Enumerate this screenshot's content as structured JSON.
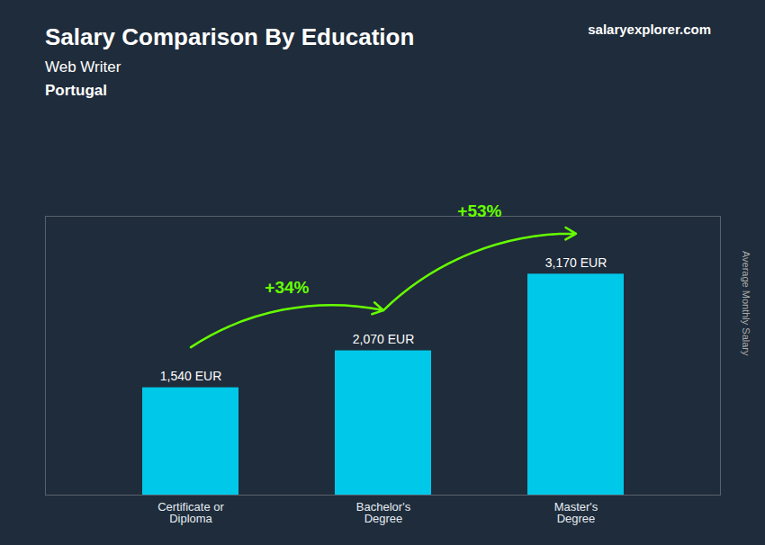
{
  "chart_data": {
    "type": "bar",
    "title": "Salary Comparison By Education",
    "subtitle": [
      "Web Writer",
      "Portugal"
    ],
    "categories": [
      "Certificate or\nDiploma",
      "Bachelor's\nDegree",
      "Master's\nDegree"
    ],
    "values": [
      1540,
      2070,
      3170
    ],
    "value_labels": [
      "1,540 EUR",
      "2,070 EUR",
      "3,170 EUR"
    ],
    "data_labels": true,
    "color": "#00c8e8",
    "ylabel": "Average Monthly Salary",
    "ylim": [
      0,
      4000
    ],
    "tick_labels": "x",
    "grid": false,
    "annotations": [
      "salary",
      "explorer.com",
      {
        "text": "+34%",
        "from": "Certificate or\nDiploma",
        "to": "Bachelor's\nDegree",
        "color": "#66ff00"
      },
      {
        "text": "+53%",
        "from": "Bachelor's\nDegree",
        "to": "Master's\nDegree",
        "color": "#66ff00"
      }
    ]
  }
}
